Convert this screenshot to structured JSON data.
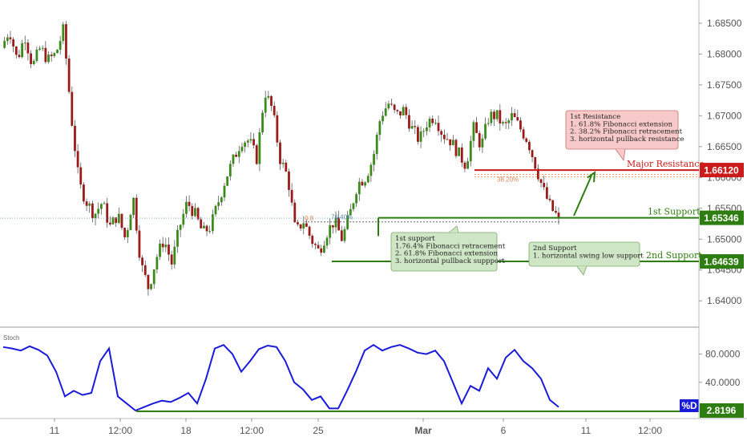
{
  "chart_data": [
    {
      "type": "candlestick",
      "ylim": [
        1.636,
        1.6885
      ],
      "y_ticks": [
        "1.68500",
        "1.68000",
        "1.67500",
        "1.67000",
        "1.66500",
        "1.66000",
        "1.65500",
        "1.65000",
        "1.64500",
        "1.64000"
      ],
      "y_tick_values": [
        1.685,
        1.68,
        1.675,
        1.67,
        1.665,
        1.66,
        1.655,
        1.65,
        1.645,
        1.64
      ],
      "x_ticks": [
        "11",
        "12:00",
        "18",
        "12:00",
        "25",
        "Mar",
        "6",
        "11",
        "12:00"
      ],
      "price_path": [
        1.681,
        1.684,
        1.679,
        1.683,
        1.678,
        1.681,
        1.679,
        1.68,
        1.684,
        1.67,
        1.659,
        1.656,
        1.654,
        1.656,
        1.652,
        1.654,
        1.65,
        1.657,
        1.646,
        1.642,
        1.647,
        1.65,
        1.646,
        1.652,
        1.656,
        1.654,
        1.651,
        1.652,
        1.656,
        1.66,
        1.663,
        1.666,
        1.666,
        1.663,
        1.674,
        1.671,
        1.663,
        1.66,
        1.651,
        1.653,
        1.65,
        1.648,
        1.651,
        1.653,
        1.65,
        1.654,
        1.659,
        1.66,
        1.663,
        1.67,
        1.672,
        1.67,
        1.671,
        1.668,
        1.666,
        1.669,
        1.67,
        1.667,
        1.666,
        1.664,
        1.662,
        1.668,
        1.665,
        1.67,
        1.67,
        1.668,
        1.67,
        1.668,
        1.666,
        1.662,
        1.658,
        1.655,
        1.6534
      ],
      "levels": [
        {
          "name": "Major Resistance",
          "value": 1.6612,
          "label": "1.66120",
          "color": "#cc1a1a"
        },
        {
          "name": "1st Support",
          "value": 1.65346,
          "label": "1.65346",
          "color": "#2e7d10"
        },
        {
          "name": "2nd Support",
          "value": 1.64639,
          "label": "1.64639",
          "color": "#2e7d10"
        }
      ],
      "fib_labels": [
        "38.20%",
        "76.40%",
        "0.8"
      ],
      "annotations": [
        {
          "id": "resistance",
          "lines": [
            "1st Resistance",
            "1. 61.8% Fibonacci extension",
            "2. 38.2%  Fibonacci retracement",
            "3. horizontal pullback resistance"
          ]
        },
        {
          "id": "support1",
          "lines": [
            "1st support",
            "1.76.4% Fibonacci retracement",
            "2. 61.8%  Fibonacci extension",
            "3. horizontal pullback suppport"
          ]
        },
        {
          "id": "support2",
          "lines": [
            "2nd Support",
            "1. horizontal swing low support"
          ]
        }
      ]
    },
    {
      "type": "line",
      "name": "Stoch",
      "ylim": [
        0,
        100
      ],
      "y_ticks": [
        "80.0000",
        "40.0000"
      ],
      "y_tick_values": [
        80,
        40
      ],
      "series": [
        {
          "name": "%D",
          "values": [
            90,
            88,
            85,
            91,
            86,
            78,
            55,
            20,
            28,
            22,
            25,
            70,
            88,
            20,
            10,
            0,
            5,
            10,
            14,
            12,
            18,
            25,
            10,
            45,
            88,
            93,
            80,
            55,
            70,
            87,
            92,
            90,
            70,
            40,
            30,
            15,
            20,
            3,
            3,
            28,
            55,
            85,
            93,
            85,
            90,
            93,
            88,
            82,
            80,
            85,
            70,
            40,
            10,
            35,
            28,
            60,
            45,
            75,
            86,
            70,
            60,
            45,
            15,
            5
          ]
        }
      ],
      "last_value": "2.8196",
      "series_tag": "%D"
    }
  ]
}
